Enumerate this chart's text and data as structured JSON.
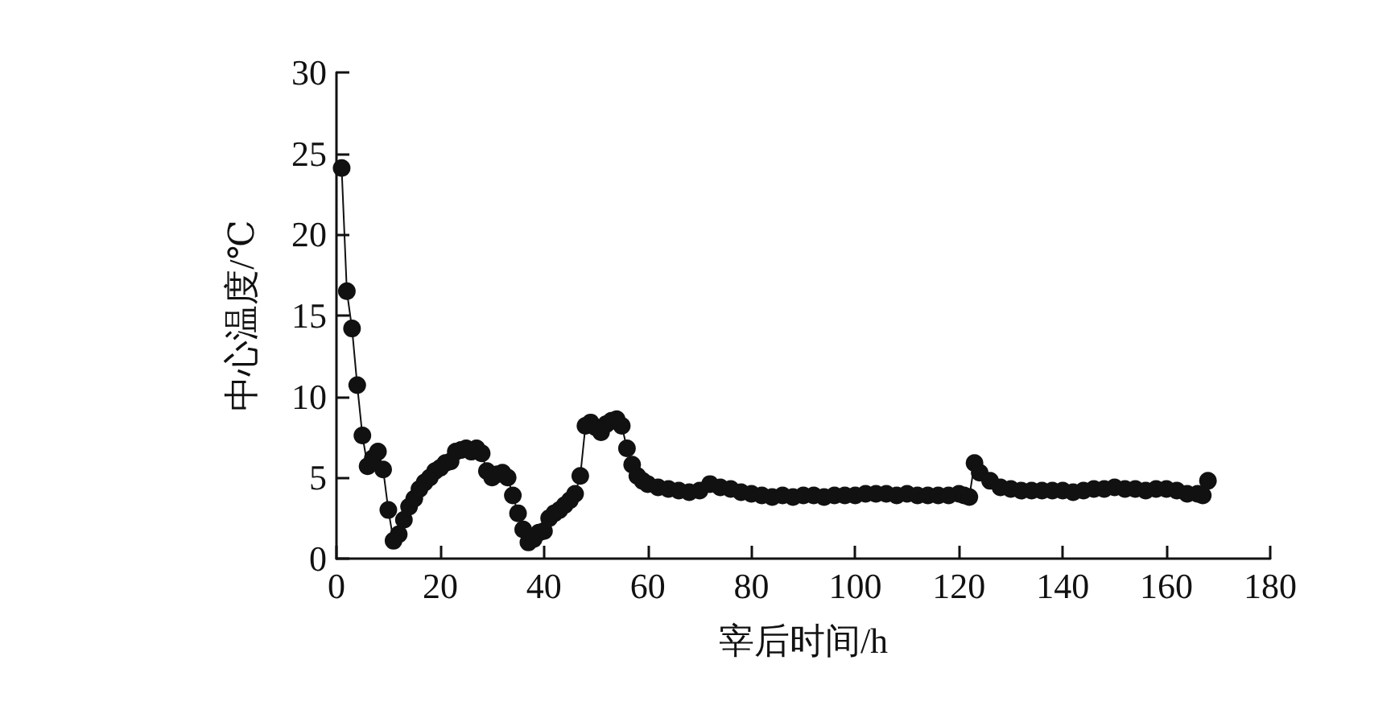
{
  "chart_data": {
    "type": "line",
    "xlabel": "宰后时间/h",
    "ylabel": "中心温度/℃",
    "xlim": [
      0,
      180
    ],
    "xticks": [
      0,
      20,
      40,
      60,
      80,
      100,
      120,
      140,
      160,
      180
    ],
    "ylim": [
      0,
      30
    ],
    "yticks": [
      0,
      5,
      10,
      15,
      20,
      25,
      30
    ],
    "grid": false,
    "marker": "circle",
    "line_style": "solid",
    "series": [
      {
        "color": "#111111",
        "x": [
          1,
          2,
          3,
          4,
          5,
          6,
          7,
          8,
          9,
          10,
          11,
          12,
          13,
          14,
          15,
          16,
          17,
          18,
          19,
          20,
          21,
          22,
          23,
          24,
          25,
          26,
          27,
          28,
          29,
          30,
          31,
          32,
          33,
          34,
          35,
          36,
          37,
          38,
          39,
          40,
          41,
          42,
          43,
          44,
          45,
          46,
          47,
          48,
          49,
          50,
          51,
          52,
          53,
          54,
          55,
          56,
          57,
          58,
          59,
          60,
          62,
          64,
          66,
          68,
          70,
          72,
          74,
          76,
          78,
          80,
          82,
          84,
          86,
          88,
          90,
          92,
          94,
          96,
          98,
          100,
          102,
          104,
          106,
          108,
          110,
          112,
          114,
          116,
          118,
          120,
          121,
          122,
          123,
          124,
          126,
          128,
          130,
          132,
          134,
          136,
          138,
          140,
          142,
          144,
          146,
          148,
          150,
          152,
          154,
          156,
          158,
          160,
          162,
          164,
          166,
          167,
          168
        ],
        "values": [
          24.1,
          16.5,
          14.2,
          10.7,
          7.6,
          5.7,
          6.2,
          6.6,
          5.5,
          3.0,
          1.1,
          1.5,
          2.4,
          3.2,
          3.7,
          4.3,
          4.7,
          5.0,
          5.4,
          5.6,
          5.9,
          6.0,
          6.6,
          6.7,
          6.8,
          6.6,
          6.8,
          6.5,
          5.4,
          5.0,
          5.2,
          5.3,
          5.0,
          3.9,
          2.8,
          1.8,
          1.0,
          1.2,
          1.6,
          1.7,
          2.5,
          2.8,
          3.0,
          3.3,
          3.6,
          4.0,
          5.1,
          8.2,
          8.4,
          8.1,
          7.8,
          8.3,
          8.5,
          8.6,
          8.2,
          6.8,
          5.8,
          5.1,
          4.8,
          4.6,
          4.4,
          4.3,
          4.2,
          4.1,
          4.2,
          4.6,
          4.4,
          4.3,
          4.1,
          4.0,
          3.9,
          3.8,
          3.9,
          3.8,
          3.9,
          3.9,
          3.8,
          3.9,
          3.9,
          3.9,
          4.0,
          4.0,
          4.0,
          3.9,
          4.0,
          3.9,
          3.9,
          3.9,
          3.9,
          4.0,
          3.9,
          3.8,
          5.9,
          5.3,
          4.8,
          4.4,
          4.3,
          4.2,
          4.2,
          4.2,
          4.2,
          4.2,
          4.1,
          4.2,
          4.3,
          4.3,
          4.4,
          4.3,
          4.3,
          4.2,
          4.3,
          4.3,
          4.2,
          4.0,
          4.0,
          3.9,
          4.8
        ]
      }
    ]
  }
}
